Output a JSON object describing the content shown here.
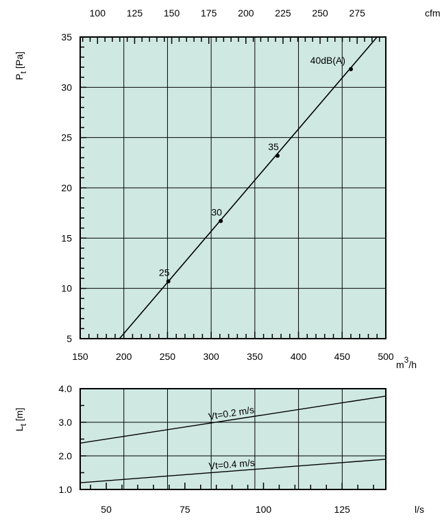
{
  "chart_data": [
    {
      "type": "line",
      "plot_bg": "#cfe8e2",
      "xlabel": "m3/h",
      "x2label": "cfm",
      "ylabel": "Pt [Pa]",
      "xlim": [
        150,
        500
      ],
      "ylim": [
        5,
        35
      ],
      "x2lim": [
        88.3,
        294.3
      ],
      "xticks": [
        150,
        200,
        250,
        300,
        350,
        400,
        450,
        500
      ],
      "yticks": [
        5,
        10,
        15,
        20,
        25,
        30,
        35
      ],
      "x2ticks": [
        100,
        125,
        150,
        175,
        200,
        225,
        250,
        275
      ],
      "grid": true,
      "series": [
        {
          "x": [
            195,
            490
          ],
          "y": [
            5,
            35
          ]
        }
      ],
      "points": [
        {
          "x": 251,
          "y": 10.7,
          "label": "25"
        },
        {
          "x": 311,
          "y": 16.7,
          "label": "30"
        },
        {
          "x": 376,
          "y": 23.2,
          "label": "35"
        },
        {
          "x": 460,
          "y": 31.8,
          "label": "40dB(A)"
        }
      ]
    },
    {
      "type": "line",
      "plot_bg": "#cfe8e2",
      "xlabel": "l/s",
      "ylabel": "Lt [m]",
      "xlim": [
        41.7,
        138.9
      ],
      "ylim": [
        1.0,
        4.0
      ],
      "xticks": [
        50,
        75,
        100,
        125
      ],
      "yticks": [
        1.0,
        2.0,
        3.0,
        4.0
      ],
      "ytick_labels": [
        "1.0",
        "2.0",
        "3.0",
        "4.0"
      ],
      "grid": true,
      "series": [
        {
          "name": "Vt=0.2 m/s",
          "x": [
            41.7,
            138.9
          ],
          "y": [
            2.38,
            3.78
          ]
        },
        {
          "name": "Vt=0.4 m/s",
          "x": [
            41.7,
            138.9
          ],
          "y": [
            1.2,
            1.9
          ]
        }
      ]
    }
  ]
}
